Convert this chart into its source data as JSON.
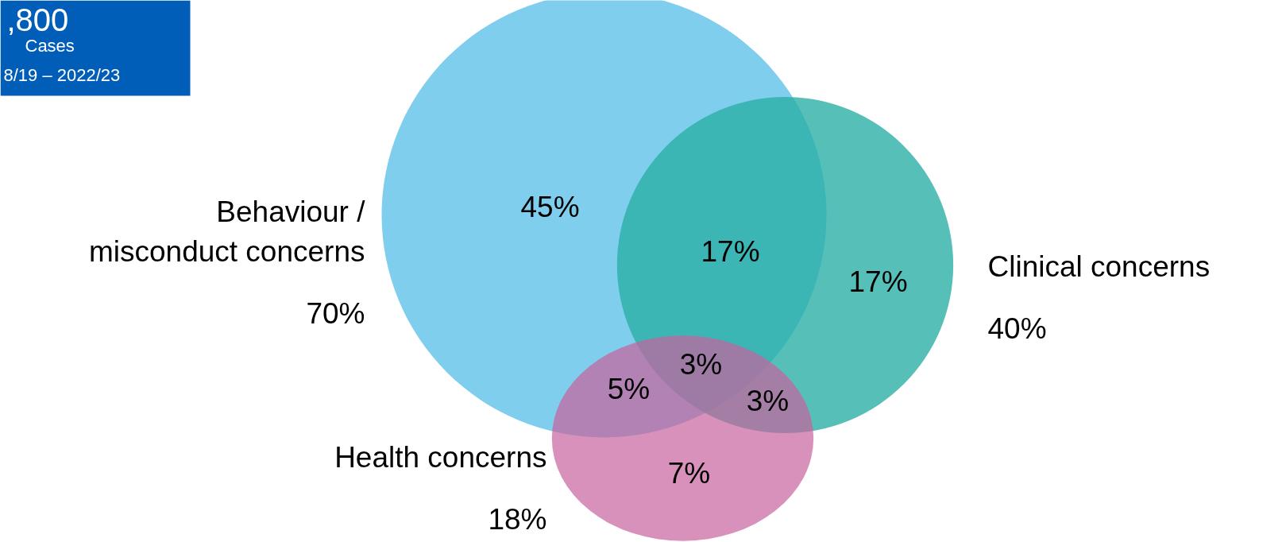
{
  "chart_data": {
    "type": "other",
    "categories": [
      "Behaviour /\nmisconduct concerns",
      "Clinical concerns",
      "Health concerns"
    ],
    "values": [
      70,
      40,
      18
    ],
    "colors": [
      "#80ceed",
      "#2aafa6",
      "#c8639d"
    ],
    "value_labels": [
      "70%",
      "40%",
      "18%"
    ],
    "annotations": [
      "45%",
      "17%",
      "17%",
      "3%",
      "5%",
      "3%",
      "7%",
      ",800",
      "Cases",
      "8/19 – 2022/23"
    ]
  }
}
